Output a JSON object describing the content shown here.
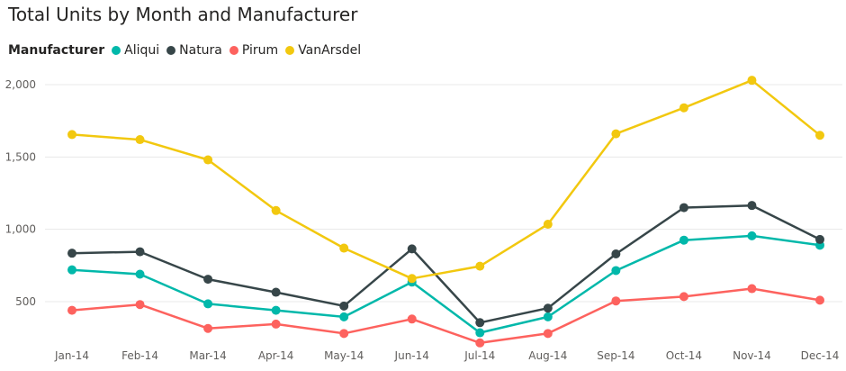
{
  "chart_data": {
    "type": "line",
    "title": "Total Units by Month and Manufacturer",
    "legend_title": "Manufacturer",
    "legend_position": "top-left",
    "xlabel": "",
    "ylabel": "",
    "grid": true,
    "ylim": [
      200,
      2100
    ],
    "y_ticks": [
      500,
      1000,
      1500,
      2000
    ],
    "y_tick_labels": [
      "500",
      "1,000",
      "1,500",
      "2,000"
    ],
    "categories": [
      "Jan-14",
      "Feb-14",
      "Mar-14",
      "Apr-14",
      "May-14",
      "Jun-14",
      "Jul-14",
      "Aug-14",
      "Sep-14",
      "Oct-14",
      "Nov-14",
      "Dec-14"
    ],
    "series": [
      {
        "name": "Aliqui",
        "color": "#01B8AA",
        "values": [
          720,
          690,
          485,
          440,
          395,
          635,
          285,
          395,
          715,
          925,
          955,
          890
        ]
      },
      {
        "name": "Natura",
        "color": "#374649",
        "values": [
          835,
          845,
          655,
          565,
          470,
          865,
          355,
          455,
          830,
          1150,
          1165,
          930
        ]
      },
      {
        "name": "Pirum",
        "color": "#FD625E",
        "values": [
          440,
          480,
          315,
          345,
          280,
          380,
          215,
          280,
          505,
          535,
          590,
          510
        ]
      },
      {
        "name": "VanArsdel",
        "color": "#F2C80F",
        "values": [
          1655,
          1620,
          1480,
          1130,
          870,
          660,
          745,
          1035,
          1660,
          1840,
          2030,
          1650
        ]
      }
    ]
  }
}
